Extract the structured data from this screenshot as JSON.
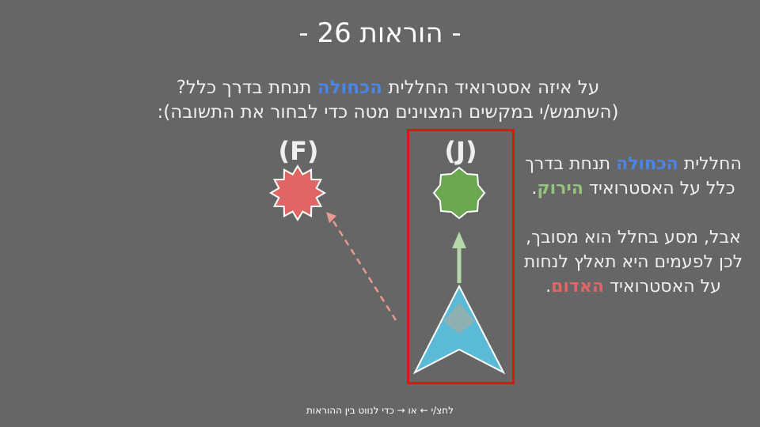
{
  "title": "- הוראות 26 -",
  "question": {
    "line1_before": "על איזה אסטרואיד החללית ",
    "line1_highlight": "הכחולה",
    "line1_after": " תנחת בדרך כלל?",
    "line2": "(השתמש/י במקשים המצוינים מטה כדי לבחור את התשובה):"
  },
  "options": {
    "left_label": "(F)",
    "right_label": "(J)"
  },
  "explanation": {
    "p1_part1": "החללית ",
    "p1_blue": "הכחולה",
    "p1_part2": " תנחת בדרך כלל על האסטרואיד ",
    "p1_green": "הירוק",
    "p1_part3": ".",
    "p2_part1": "אבל, מסע בחלל הוא מסובך, לכן לפעמים היא תאלץ לנחות על האסטרואיד ",
    "p2_red": "האדום",
    "p2_part2": "."
  },
  "footer": "לחצ/י ← או → כדי לנווט בין ההוראות",
  "colors": {
    "background": "#666666",
    "blue_highlight": "#4a86e8",
    "green_highlight": "#93c47d",
    "red_highlight": "#e06666",
    "red_asteroid": "#e06666",
    "green_asteroid": "#6aa84f",
    "spaceship": "#5bbbd6",
    "selection_border": "#e01414"
  },
  "icons": {
    "left_target": "red-spiky-asteroid",
    "right_target": "green-star-asteroid",
    "player": "blue-arrowhead-spaceship"
  }
}
